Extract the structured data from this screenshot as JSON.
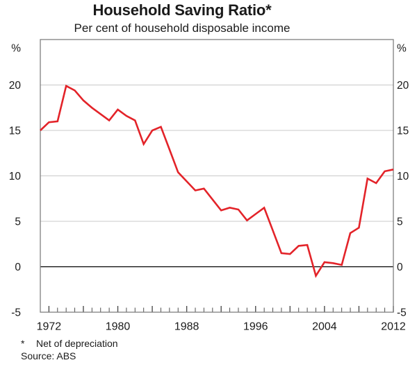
{
  "header": {
    "title": "Household Saving Ratio*",
    "subtitle": "Per cent of household disposable income"
  },
  "chart_data": {
    "type": "line",
    "title": "Household Saving Ratio*",
    "subtitle": "Per cent of household disposable income",
    "unit_label": "%",
    "xlim": [
      1971,
      2012
    ],
    "ylim": [
      -5,
      25
    ],
    "y_ticks": [
      20,
      15,
      10,
      5,
      0,
      -5
    ],
    "y_gridlines": [
      5,
      10,
      15,
      20
    ],
    "zero_line": 0,
    "x_labeled_ticks": [
      1972,
      1980,
      1988,
      1996,
      2004,
      2012
    ],
    "grid_on": true,
    "legend": "none",
    "series": [
      {
        "name": "Household saving ratio (net of depreciation)",
        "color": "#e32329",
        "x": [
          1971,
          1972,
          1973,
          1974,
          1975,
          1976,
          1977,
          1978,
          1979,
          1980,
          1981,
          1982,
          1983,
          1984,
          1985,
          1986,
          1987,
          1988,
          1989,
          1990,
          1991,
          1992,
          1993,
          1994,
          1995,
          1996,
          1997,
          1998,
          1999,
          2000,
          2001,
          2002,
          2003,
          2004,
          2005,
          2006,
          2007,
          2008,
          2009,
          2010,
          2011,
          2012
        ],
        "values": [
          15.0,
          15.9,
          16.0,
          19.9,
          19.4,
          18.3,
          17.5,
          16.8,
          16.1,
          17.3,
          16.6,
          16.1,
          13.5,
          15.0,
          15.4,
          12.9,
          10.4,
          9.4,
          8.4,
          8.6,
          7.4,
          6.2,
          6.5,
          6.3,
          5.1,
          5.8,
          6.5,
          4.0,
          1.5,
          1.4,
          2.3,
          2.4,
          -1.0,
          0.5,
          0.4,
          0.2,
          3.7,
          4.3,
          9.7,
          9.2,
          10.5,
          10.7
        ]
      }
    ],
    "colors": {
      "line": "#e32329",
      "gridline": "#c8c8c8",
      "zero_line": "#000000",
      "plot_border": "#7f7f7f",
      "tick": "#4d4d4d",
      "text": "#1a1a1a"
    }
  },
  "footnotes": [
    {
      "marker": "*",
      "text": "Net of depreciation"
    }
  ],
  "source": "Source: ABS"
}
